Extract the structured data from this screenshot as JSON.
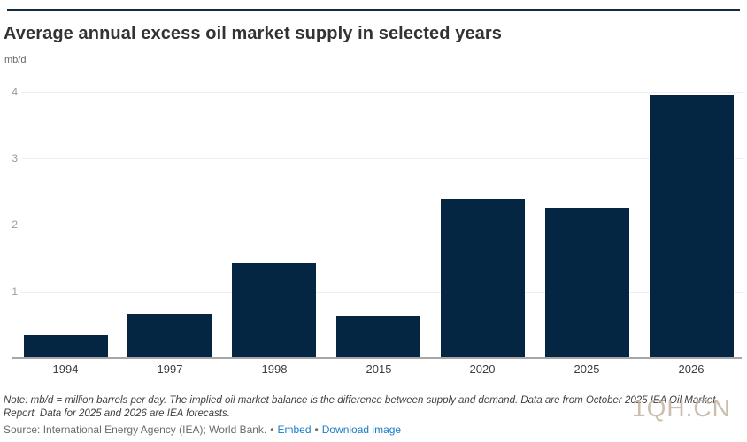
{
  "header": {
    "title": "Average annual excess oil market supply in selected years",
    "units": "mb/d"
  },
  "chart_data": {
    "type": "bar",
    "categories": [
      "1994",
      "1997",
      "1998",
      "2015",
      "2020",
      "2025",
      "2026"
    ],
    "values": [
      0.35,
      0.66,
      1.43,
      0.62,
      2.39,
      2.26,
      3.95
    ],
    "title": "Average annual excess oil market supply in selected years",
    "xlabel": "",
    "ylabel": "mb/d",
    "ylim": [
      0,
      4.1
    ],
    "yticks": [
      1,
      2,
      3,
      4
    ],
    "grid": true,
    "legend": "none",
    "bar_color": "#042642"
  },
  "footer": {
    "note": "Note: mb/d = million barrels per day. The implied oil market balance is the difference between supply and demand. Data are from October 2025 IEA Oil Market Report. Data for 2025 and 2026 are IEA forecasts.",
    "source": "Source: International Energy Agency (IEA); World Bank.",
    "separator": "•",
    "links": [
      {
        "label": "Embed"
      },
      {
        "label": "Download image"
      }
    ]
  },
  "watermark": "1QH.CN",
  "colors": {
    "bar": "#042642",
    "top_rule": "#14293d",
    "gridline": "#efefef",
    "baseline": "#a6a6a6",
    "ytick_text": "#9b9b9b",
    "xtick_text": "#3d3d3d",
    "title_text": "#333333",
    "link": "#1b7cc6"
  }
}
